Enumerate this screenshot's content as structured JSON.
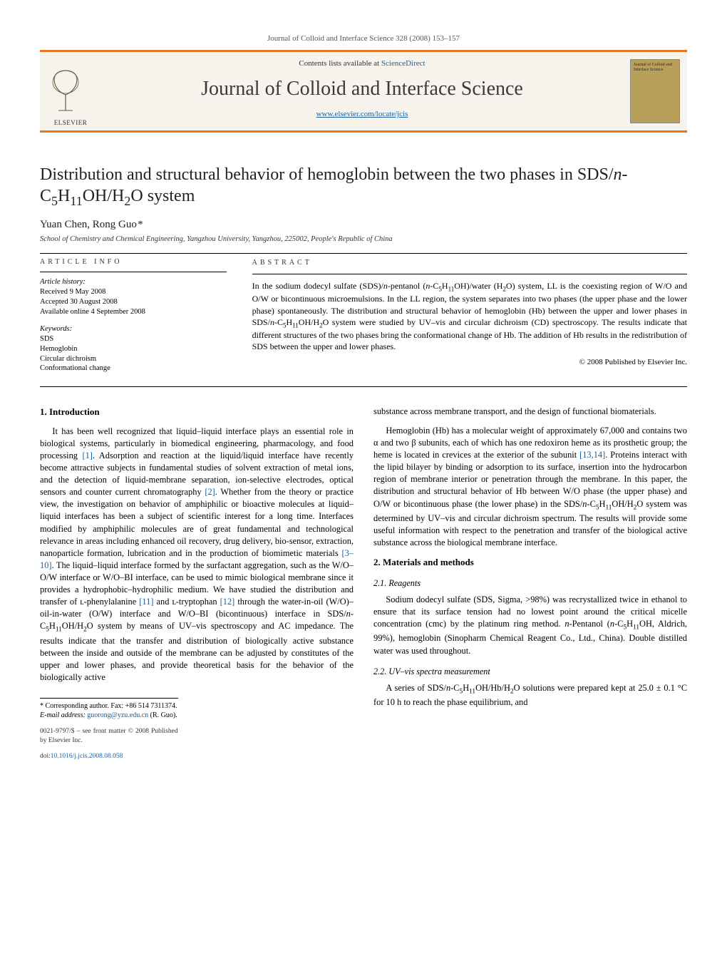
{
  "running_head": "Journal of Colloid and Interface Science 328 (2008) 153–157",
  "masthead": {
    "contents_prefix": "Contents lists available at ",
    "contents_link": "ScienceDirect",
    "journal_name": "Journal of Colloid and Interface Science",
    "journal_url": "www.elsevier.com/locate/jcis",
    "publisher_word": "ELSEVIER",
    "cover_text": "Journal of Colloid and Interface Science"
  },
  "colors": {
    "accent": "#e87722",
    "link": "#1a5fa0",
    "masthead_bg": "#f7f3ed",
    "cover_bg": "#b8a05a",
    "text": "#000000"
  },
  "article": {
    "title_html": "Distribution and structural behavior of hemoglobin between the two phases in SDS/<i>n</i>-C<sub>5</sub>H<sub>11</sub>OH/H<sub>2</sub>O system",
    "authors_html": "Yuan Chen, Rong Guo&#8202;*",
    "affiliation": "School of Chemistry and Chemical Engineering, Yangzhou University, Yangzhou, 225002, People's Republic of China"
  },
  "info": {
    "label_info": "ARTICLE INFO",
    "label_abs": "ABSTRACT",
    "history_hdr": "Article history:",
    "history": [
      "Received 9 May 2008",
      "Accepted 30 August 2008",
      "Available online 4 September 2008"
    ],
    "keywords_hdr": "Keywords:",
    "keywords": [
      "SDS",
      "Hemoglobin",
      "Circular dichroism",
      "Conformational change"
    ]
  },
  "abstract_html": "In the sodium dodecyl sulfate (SDS)/<i>n</i>-pentanol (<i>n</i>-C<sub>5</sub>H<sub>11</sub>OH)/water (H<sub>2</sub>O) system, LL is the coexisting region of W/O and O/W or bicontinuous microemulsions. In the LL region, the system separates into two phases (the upper phase and the lower phase) spontaneously. The distribution and structural behavior of hemoglobin (Hb) between the upper and lower phases in SDS/<i>n</i>-C<sub>5</sub>H<sub>11</sub>OH/H<sub>2</sub>O system were studied by UV–vis and circular dichroism (CD) spectroscopy. The results indicate that different structures of the two phases bring the conformational change of Hb. The addition of Hb results in the redistribution of SDS between the upper and lower phases.",
  "copyright": "© 2008 Published by Elsevier Inc.",
  "sections": {
    "s1_title": "1. Introduction",
    "s1_p1_html": "It has been well recognized that liquid–liquid interface plays an essential role in biological systems, particularly in biomedical engineering, pharmacology, and food processing <span class=\"ref\">[1]</span>. Adsorption and reaction at the liquid/liquid interface have recently become attractive subjects in fundamental studies of solvent extraction of metal ions, and the detection of liquid-membrane separation, ion-selective electrodes, optical sensors and counter current chromatography <span class=\"ref\">[2]</span>. Whether from the theory or practice view, the investigation on behavior of amphiphilic or bioactive molecules at liquid–liquid interfaces has been a subject of scientific interest for a long time. Interfaces modified by amphiphilic molecules are of great fundamental and technological relevance in areas including enhanced oil recovery, drug delivery, bio-sensor, extraction, nanoparticle formation, lubrication and in the production of biomimetic materials <span class=\"ref\">[3–10]</span>. The liquid–liquid interface formed by the surfactant aggregation, such as the W/O–O/W interface or W/O–BI interface, can be used to mimic biological membrane since it provides a hydrophobic–hydrophilic medium. We have studied the distribution and transfer of ʟ-phenylalanine <span class=\"ref\">[11]</span> and ʟ-tryptophan <span class=\"ref\">[12]</span> through the water-in-oil (W/O)–oil-in-water (O/W) interface and W/O–BI (bicontinuous) interface in SDS/<i>n</i>-C<sub>5</sub>H<sub>11</sub>OH/H<sub>2</sub>O system by means of UV–vis spectroscopy and AC impedance. The results indicate that the transfer and distribution of biologically active substance between the inside and outside of the membrane can be adjusted by constitutes of the upper and lower phases, and provide theoretical basis for the behavior of the biologically active",
    "s1_p2_html": "substance across membrane transport, and the design of functional biomaterials.",
    "s1_p3_html": "Hemoglobin (Hb) has a molecular weight of approximately 67,000 and contains two α and two β subunits, each of which has one redoxiron heme as its prosthetic group; the heme is located in crevices at the exterior of the subunit <span class=\"ref\">[13,14]</span>. Proteins interact with the lipid bilayer by binding or adsorption to its surface, insertion into the hydrocarbon region of membrane interior or penetration through the membrane. In this paper, the distribution and structural behavior of Hb between W/O phase (the upper phase) and O/W or bicontinuous phase (the lower phase) in the SDS/<i>n</i>-C<sub>5</sub>H<sub>11</sub>OH/H<sub>2</sub>O system was determined by UV–vis and circular dichroism spectrum. The results will provide some useful information with respect to the penetration and transfer of the biological active substance across the biological membrane interface.",
    "s2_title": "2. Materials and methods",
    "s21_title": "2.1. Reagents",
    "s21_p1_html": "Sodium dodecyl sulfate (SDS, Sigma, &gt;98%) was recrystallized twice in ethanol to ensure that its surface tension had no lowest point around the critical micelle concentration (cmc) by the platinum ring method. <i>n</i>-Pentanol (<i>n</i>-C<sub>5</sub>H<sub>11</sub>OH, Aldrich, 99%), hemoglobin (Sinopharm Chemical Reagent Co., Ltd., China). Double distilled water was used throughout.",
    "s22_title": "2.2. UV–vis spectra measurement",
    "s22_p1_html": "A series of SDS/<i>n</i>-C<sub>5</sub>H<sub>11</sub>OH/Hb/H<sub>2</sub>O solutions were prepared kept at 25.0 ± 0.1 °C for 10 h to reach the phase equilibrium, and"
  },
  "footer": {
    "corr": "* Corresponding author. Fax: +86 514 7311374.",
    "email_label": "E-mail address:",
    "email": "guorong@yzu.edu.cn",
    "email_paren": "(R. Guo).",
    "front_matter": "0021-9797/$ – see front matter © 2008 Published by Elsevier Inc.",
    "doi_label": "doi:",
    "doi": "10.1016/j.jcis.2008.08.058"
  }
}
